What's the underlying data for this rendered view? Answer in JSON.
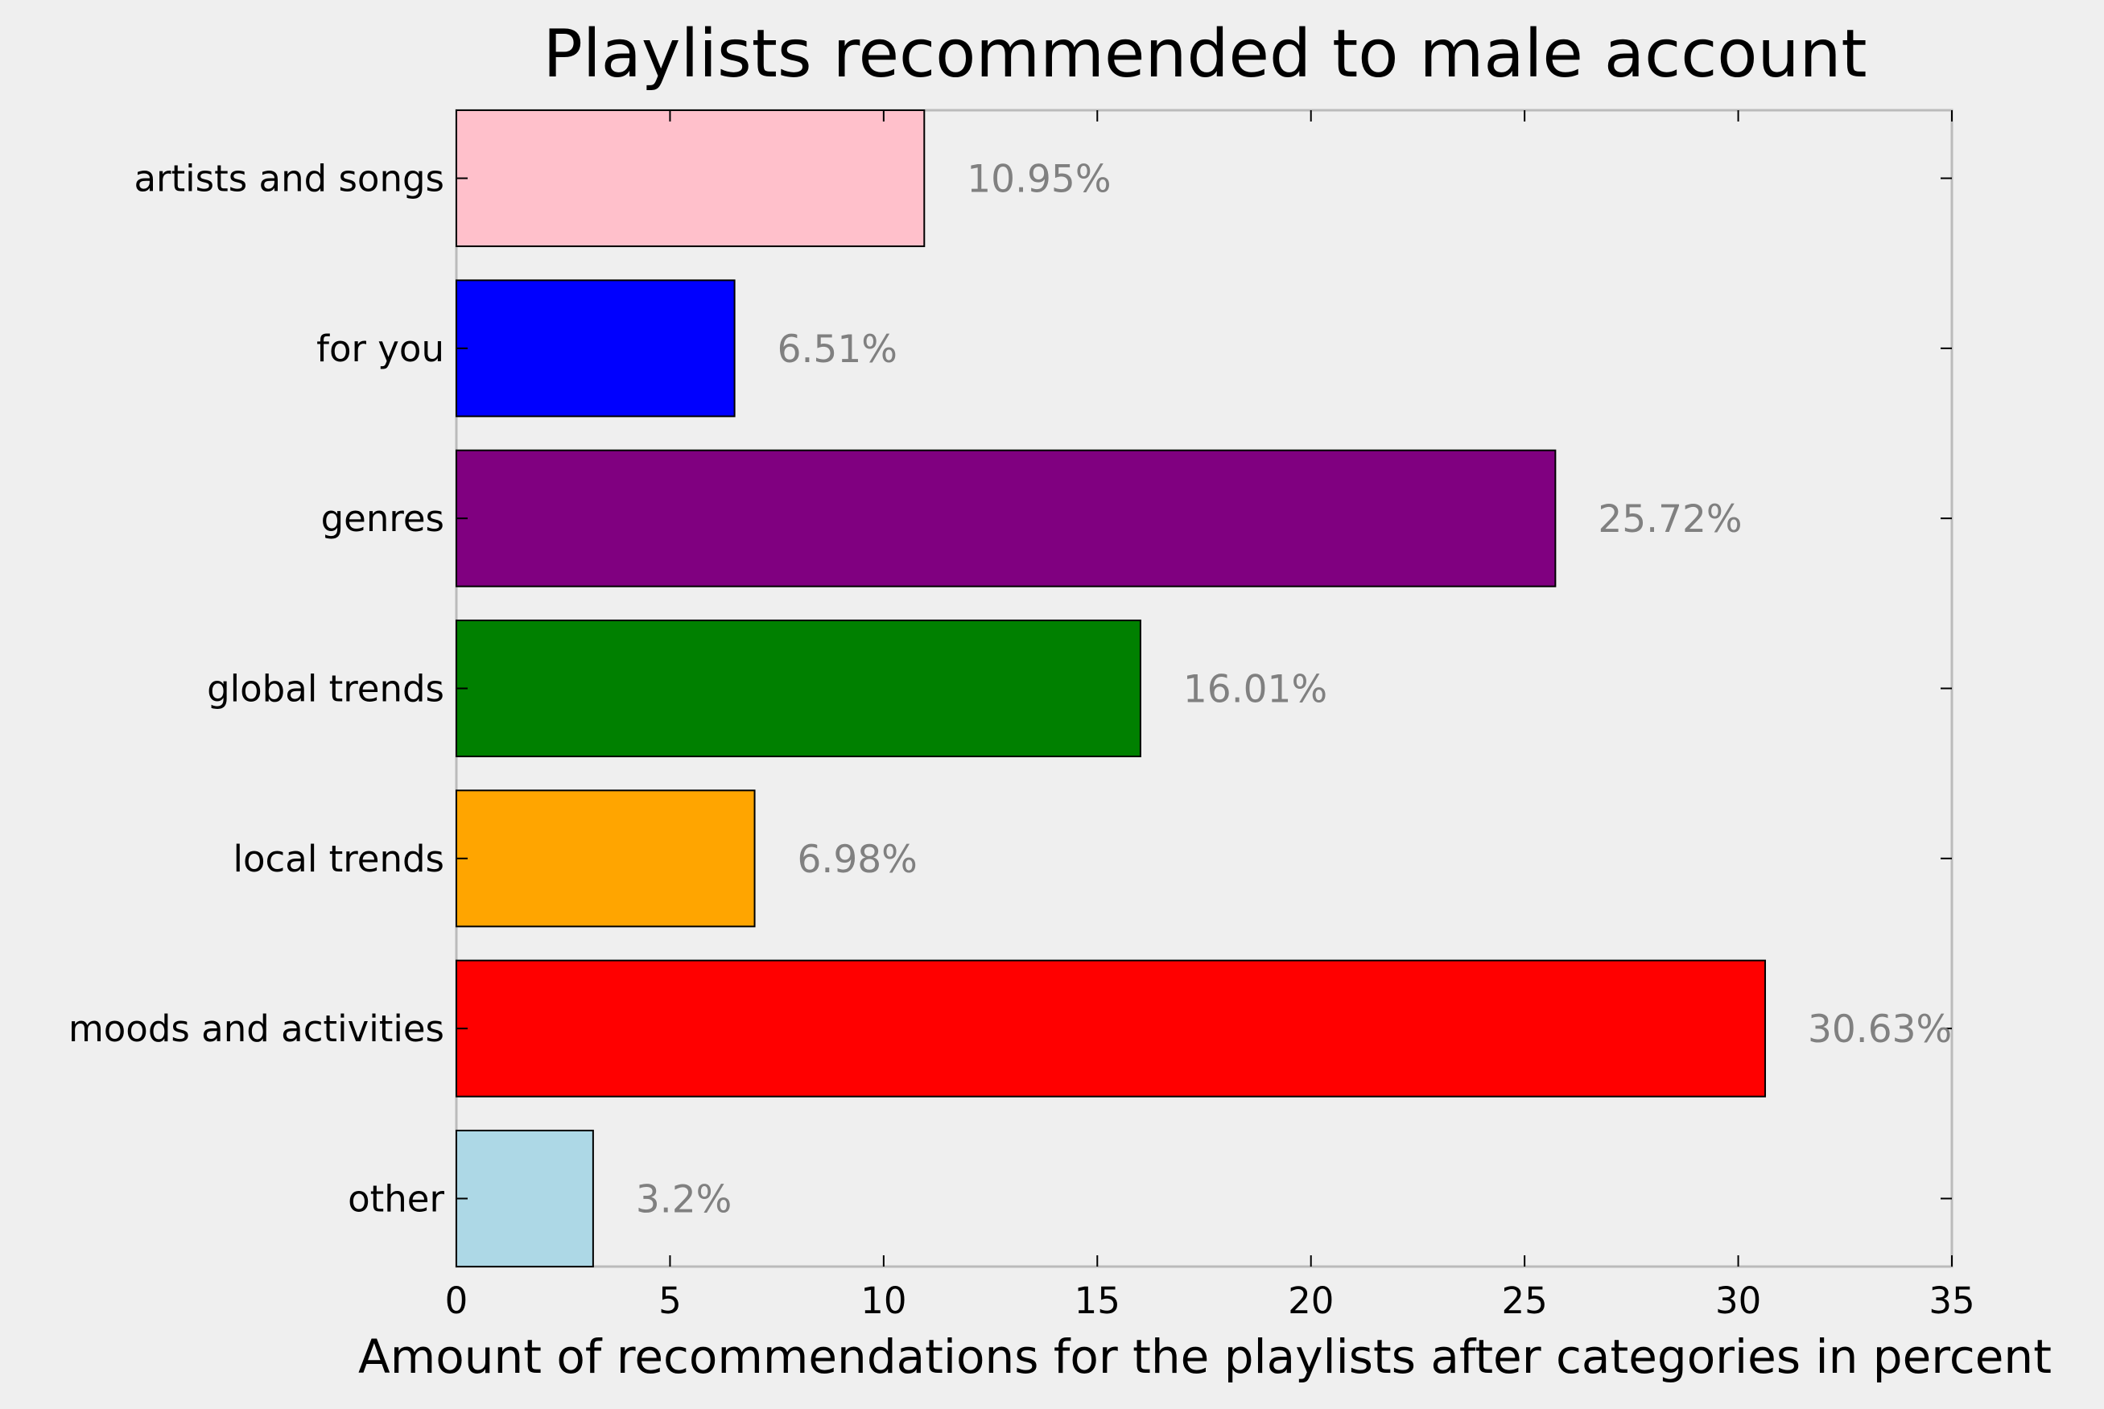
{
  "chart_data": {
    "type": "bar",
    "orientation": "horizontal",
    "title": "Playlists recommended to male account",
    "xlabel": "Amount of recommendations for the playlists after categories in percent",
    "ylabel": "",
    "xlim": [
      0,
      35
    ],
    "xticks": [
      0,
      5,
      10,
      15,
      20,
      25,
      30,
      35
    ],
    "grid": false,
    "categories": [
      "artists and songs",
      "for you",
      "genres",
      "global trends",
      "local trends",
      "moods and activities",
      "other"
    ],
    "values": [
      10.95,
      6.51,
      25.72,
      16.01,
      6.98,
      30.63,
      3.2
    ],
    "data_labels": [
      "10.95%",
      "6.51%",
      "25.72%",
      "16.01%",
      "6.98%",
      "30.63%",
      "3.2%"
    ],
    "colors": [
      "#ffc0cb",
      "#0000ff",
      "#800080",
      "#008000",
      "#ffa500",
      "#ff0000",
      "#add8e6"
    ]
  }
}
